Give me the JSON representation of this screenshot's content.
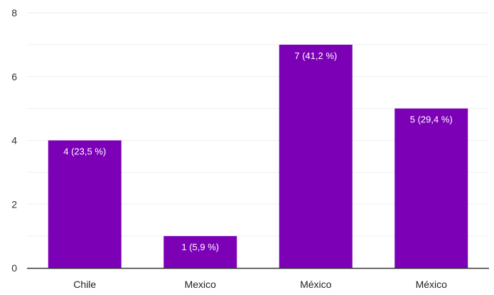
{
  "chart_data": {
    "type": "bar",
    "categories": [
      "Chile",
      "Mexico",
      "México",
      "México"
    ],
    "values": [
      4,
      1,
      7,
      5
    ],
    "data_labels": [
      "4 (23,5 %)",
      "1 (5,9 %)",
      "7 (41,2 %)",
      "5 (29,4 %)"
    ],
    "y_ticks": [
      "0",
      "2",
      "4",
      "6",
      "8"
    ],
    "ylim": [
      0,
      8
    ],
    "bar_color": "#7b00b6",
    "grid": true,
    "grid_color": "#eeeeee",
    "axis_color": "#333333",
    "title": "",
    "xlabel": "",
    "ylabel": ""
  }
}
